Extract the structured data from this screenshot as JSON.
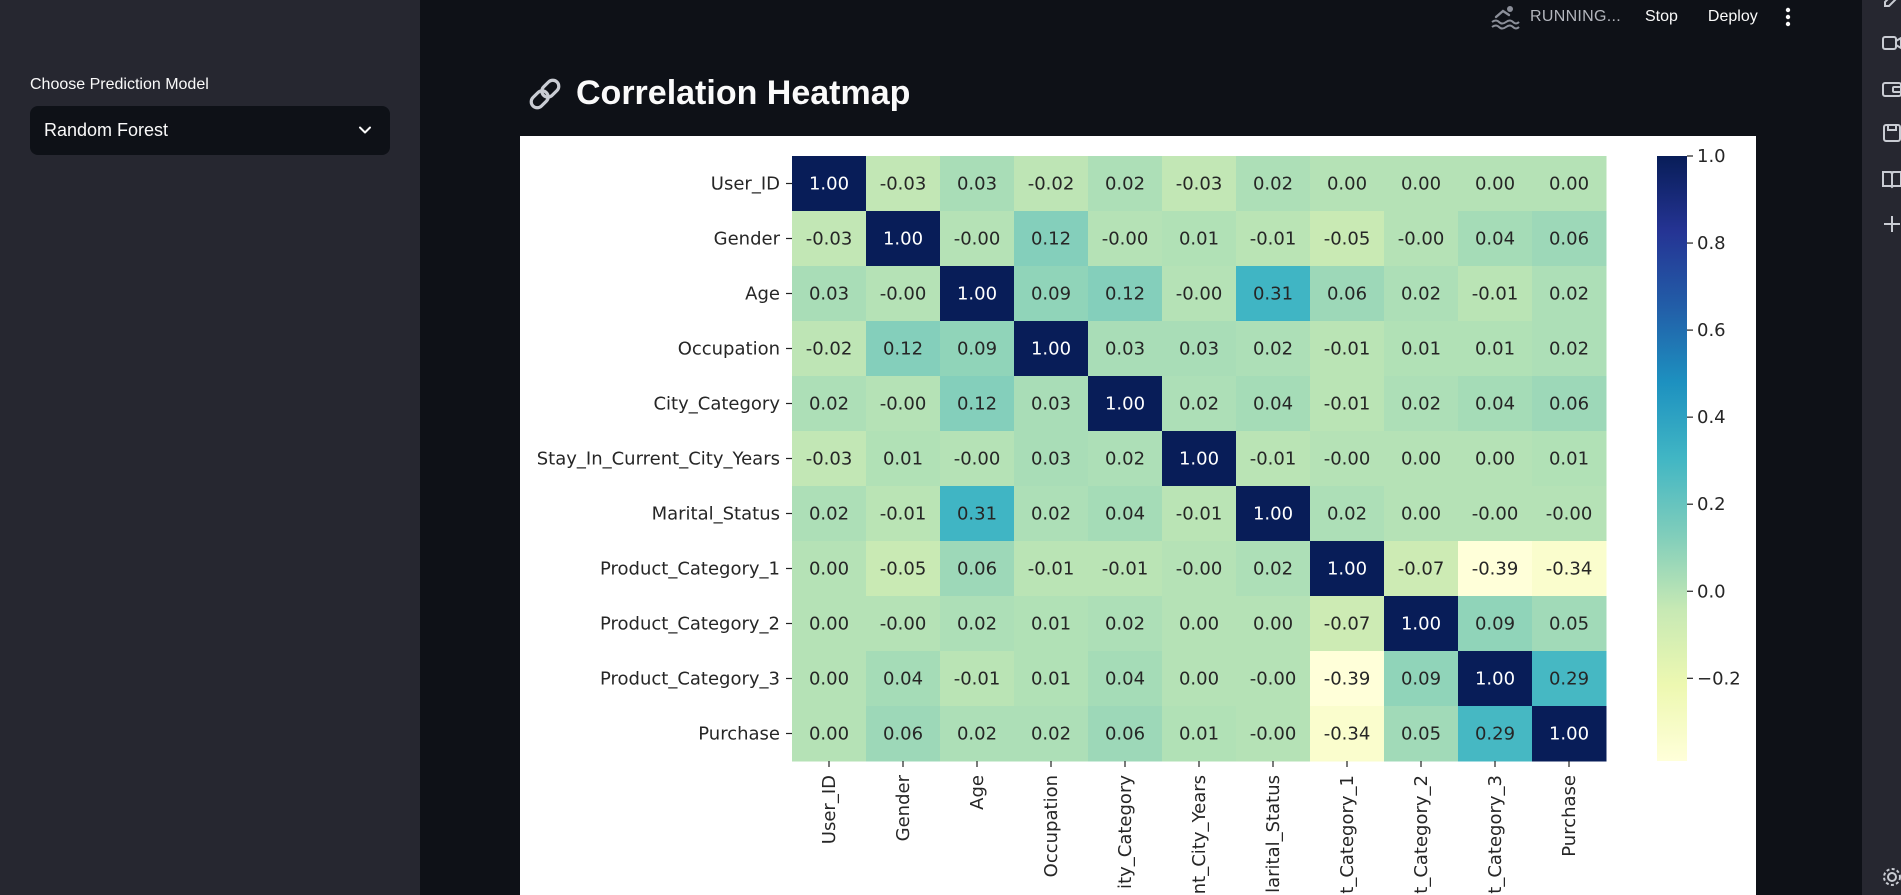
{
  "sidebar": {
    "model_label": "Choose Prediction Model",
    "model_value": "Random Forest"
  },
  "topbar": {
    "running_text": "RUNNING...",
    "stop_label": "Stop",
    "deploy_label": "Deploy"
  },
  "page": {
    "title": "Correlation Heatmap"
  },
  "chart_data": {
    "type": "heatmap",
    "colormap": "YlGnBu",
    "row_labels": [
      "User_ID",
      "Gender",
      "Age",
      "Occupation",
      "City_Category",
      "Stay_In_Current_City_Years",
      "Marital_Status",
      "Product_Category_1",
      "Product_Category_2",
      "Product_Category_3",
      "Purchase"
    ],
    "col_labels": [
      "User_ID",
      "Gender",
      "Age",
      "Occupation",
      "ity_Category",
      "nt_City_Years",
      "larital_Status",
      "t_Category_1",
      "t_Category_2",
      "t_Category_3",
      "Purchase"
    ],
    "values": [
      [
        1.0,
        -0.03,
        0.03,
        -0.02,
        0.02,
        -0.03,
        0.02,
        0.0,
        0.0,
        0.0,
        0.0
      ],
      [
        -0.03,
        1.0,
        -0.0,
        0.12,
        -0.0,
        0.01,
        -0.01,
        -0.05,
        -0.0,
        0.04,
        0.06
      ],
      [
        0.03,
        -0.0,
        1.0,
        0.09,
        0.12,
        -0.0,
        0.31,
        0.06,
        0.02,
        -0.01,
        0.02
      ],
      [
        -0.02,
        0.12,
        0.09,
        1.0,
        0.03,
        0.03,
        0.02,
        -0.01,
        0.01,
        0.01,
        0.02
      ],
      [
        0.02,
        -0.0,
        0.12,
        0.03,
        1.0,
        0.02,
        0.04,
        -0.01,
        0.02,
        0.04,
        0.06
      ],
      [
        -0.03,
        0.01,
        -0.0,
        0.03,
        0.02,
        1.0,
        -0.01,
        -0.0,
        0.0,
        0.0,
        0.01
      ],
      [
        0.02,
        -0.01,
        0.31,
        0.02,
        0.04,
        -0.01,
        1.0,
        0.02,
        0.0,
        -0.0,
        -0.0
      ],
      [
        0.0,
        -0.05,
        0.06,
        -0.01,
        -0.01,
        -0.0,
        0.02,
        1.0,
        -0.07,
        -0.39,
        -0.34
      ],
      [
        0.0,
        -0.0,
        0.02,
        0.01,
        0.02,
        0.0,
        0.0,
        -0.07,
        1.0,
        0.09,
        0.05
      ],
      [
        0.0,
        0.04,
        -0.01,
        0.01,
        0.04,
        0.0,
        -0.0,
        -0.39,
        0.09,
        1.0,
        0.29
      ],
      [
        0.0,
        0.06,
        0.02,
        0.02,
        0.06,
        0.01,
        -0.0,
        -0.34,
        0.05,
        0.29,
        1.0
      ]
    ],
    "value_range": [
      -0.39,
      1.0
    ],
    "colorbar_ticks": [
      1.0,
      0.8,
      0.6,
      0.4,
      0.2,
      0.0,
      -0.2
    ],
    "colorbar_tick_labels": [
      "1.0",
      "0.8",
      "0.6",
      "0.4",
      "0.2",
      "0.0",
      "−0.2"
    ],
    "annotations": true
  },
  "icons": {
    "topbar": [
      "swimmer-icon",
      "more-vert-icon"
    ],
    "rail": [
      "rail-video-icon",
      "rail-wallet-icon",
      "rail-save-icon",
      "rail-book-icon",
      "rail-plus-icon",
      "rail-settings-icon"
    ]
  }
}
